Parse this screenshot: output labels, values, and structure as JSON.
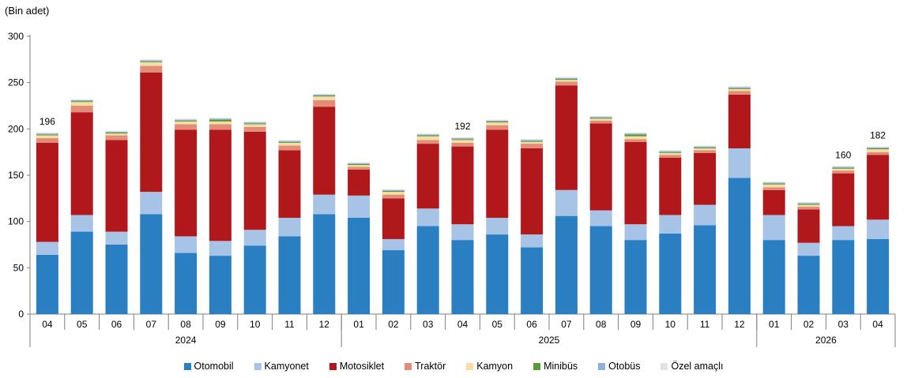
{
  "chart_data": {
    "type": "bar",
    "stacked": true,
    "unit_label": "(Bin adet)",
    "ylim": [
      0,
      300
    ],
    "yticks": [
      0,
      50,
      100,
      150,
      200,
      250,
      300
    ],
    "categories": [
      "04",
      "05",
      "06",
      "07",
      "08",
      "09",
      "10",
      "11",
      "12",
      "01",
      "02",
      "03",
      "04",
      "05",
      "06",
      "07",
      "08",
      "09",
      "10",
      "11",
      "12",
      "01",
      "02",
      "03",
      "04"
    ],
    "years": [
      {
        "label": "2024",
        "start": 0,
        "end": 8
      },
      {
        "label": "2025",
        "start": 9,
        "end": 20
      },
      {
        "label": "2026",
        "start": 21,
        "end": 24
      }
    ],
    "series": [
      {
        "name": "Otomobil",
        "color": "#2a7fc2",
        "values": [
          64,
          89,
          75,
          108,
          66,
          63,
          74,
          84,
          108,
          104,
          69,
          95,
          80,
          86,
          72,
          106,
          95,
          80,
          87,
          96,
          147,
          80,
          63,
          80,
          81
        ]
      },
      {
        "name": "Kamyonet",
        "color": "#a7c3e6",
        "values": [
          14,
          18,
          14,
          24,
          18,
          16,
          17,
          20,
          21,
          24,
          12,
          19,
          17,
          18,
          14,
          28,
          17,
          17,
          20,
          22,
          32,
          27,
          14,
          15,
          21
        ]
      },
      {
        "name": "Motosiklet",
        "color": "#b0181b",
        "values": [
          107,
          111,
          99,
          129,
          115,
          120,
          106,
          73,
          95,
          28,
          44,
          70,
          84,
          95,
          93,
          113,
          94,
          89,
          62,
          56,
          58,
          27,
          36,
          57,
          70
        ]
      },
      {
        "name": "Traktör",
        "color": "#e38c7a",
        "values": [
          5,
          7,
          5,
          7,
          6,
          6,
          5,
          5,
          7,
          3,
          4,
          4,
          4,
          5,
          5,
          4,
          3,
          3,
          3,
          3,
          4,
          3,
          3,
          3,
          3
        ]
      },
      {
        "name": "Kamyon",
        "color": "#f5dea3",
        "values": [
          3,
          4,
          2,
          4,
          3,
          3,
          3,
          3,
          4,
          2,
          3,
          4,
          3,
          3,
          2,
          2,
          2,
          3,
          2,
          2,
          2,
          3,
          2,
          2,
          3
        ]
      },
      {
        "name": "Minibüs",
        "color": "#5b9a3c",
        "values": [
          1,
          1,
          1,
          1,
          1,
          2,
          1,
          1,
          1,
          1,
          1,
          1,
          1,
          1,
          1,
          1,
          1,
          2,
          1,
          1,
          1,
          1,
          1,
          1,
          1
        ]
      },
      {
        "name": "Otobüs",
        "color": "#8fb1d9",
        "values": [
          1,
          1,
          1,
          1,
          1,
          1,
          1,
          1,
          1,
          1,
          1,
          1,
          1,
          1,
          1,
          1,
          1,
          1,
          1,
          1,
          1,
          1,
          1,
          1,
          1
        ]
      },
      {
        "name": "Özel amaçlı",
        "color": "#e2e2e2",
        "values": [
          1,
          1,
          1,
          1,
          1,
          1,
          1,
          1,
          1,
          1,
          1,
          1,
          1,
          1,
          1,
          1,
          1,
          1,
          1,
          1,
          1,
          1,
          1,
          1,
          1
        ]
      }
    ],
    "annotations": [
      {
        "index": 0,
        "text": "196"
      },
      {
        "index": 12,
        "text": "192"
      },
      {
        "index": 23,
        "text": "160"
      },
      {
        "index": 24,
        "text": "182"
      }
    ],
    "legend_position": "bottom",
    "grid": false
  }
}
